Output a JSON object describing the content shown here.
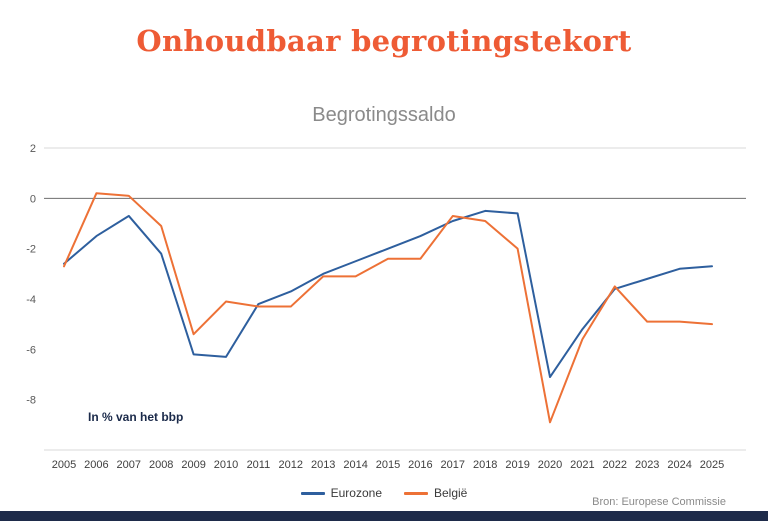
{
  "header": {
    "title": "Onhoudbaar begrotingstekort",
    "subtitle": "Begrotingssaldo"
  },
  "annotation": "In % van het bbp",
  "source": "Bron: Europese Commissie",
  "colors": {
    "title": "#ee5b35",
    "eurozone": "#2e5f9e",
    "belgie": "#ed7136",
    "footer_bar": "#1e2b4a",
    "grid": "#d9d9d9",
    "zero_line": "#6e6e6e",
    "axis_text": "#595959",
    "year_text": "#404040"
  },
  "chart_data": {
    "type": "line",
    "title": "Begrotingssaldo",
    "ylabel": "In % van het bbp",
    "grid": true,
    "legend_position": "bottom",
    "ylim": [
      -10,
      2
    ],
    "yticks": [
      {
        "v": 2,
        "label": "2"
      },
      {
        "v": 0,
        "label": "0"
      },
      {
        "v": -2,
        "label": "-2"
      },
      {
        "v": -4,
        "label": "-4"
      },
      {
        "v": -6,
        "label": "-6"
      },
      {
        "v": -8,
        "label": "-8"
      }
    ],
    "x": [
      2005,
      2006,
      2007,
      2008,
      2009,
      2010,
      2011,
      2012,
      2013,
      2014,
      2015,
      2016,
      2017,
      2018,
      2019,
      2020,
      2021,
      2022,
      2023,
      2024,
      2025
    ],
    "series": [
      {
        "name": "Eurozone",
        "color": "#2e5f9e",
        "values": [
          -2.6,
          -1.5,
          -0.7,
          -2.2,
          -6.2,
          -6.3,
          -4.2,
          -3.7,
          -3.0,
          -2.5,
          -2.0,
          -1.5,
          -0.9,
          -0.5,
          -0.6,
          -7.1,
          -5.2,
          -3.6,
          -3.2,
          -2.8,
          -2.7
        ]
      },
      {
        "name": "België",
        "color": "#ed7136",
        "values": [
          -2.7,
          0.2,
          0.1,
          -1.1,
          -5.4,
          -4.1,
          -4.3,
          -4.3,
          -3.1,
          -3.1,
          -2.4,
          -2.4,
          -0.7,
          -0.9,
          -2.0,
          -8.9,
          -5.6,
          -3.5,
          -4.9,
          -4.9,
          -5.0
        ]
      }
    ]
  }
}
